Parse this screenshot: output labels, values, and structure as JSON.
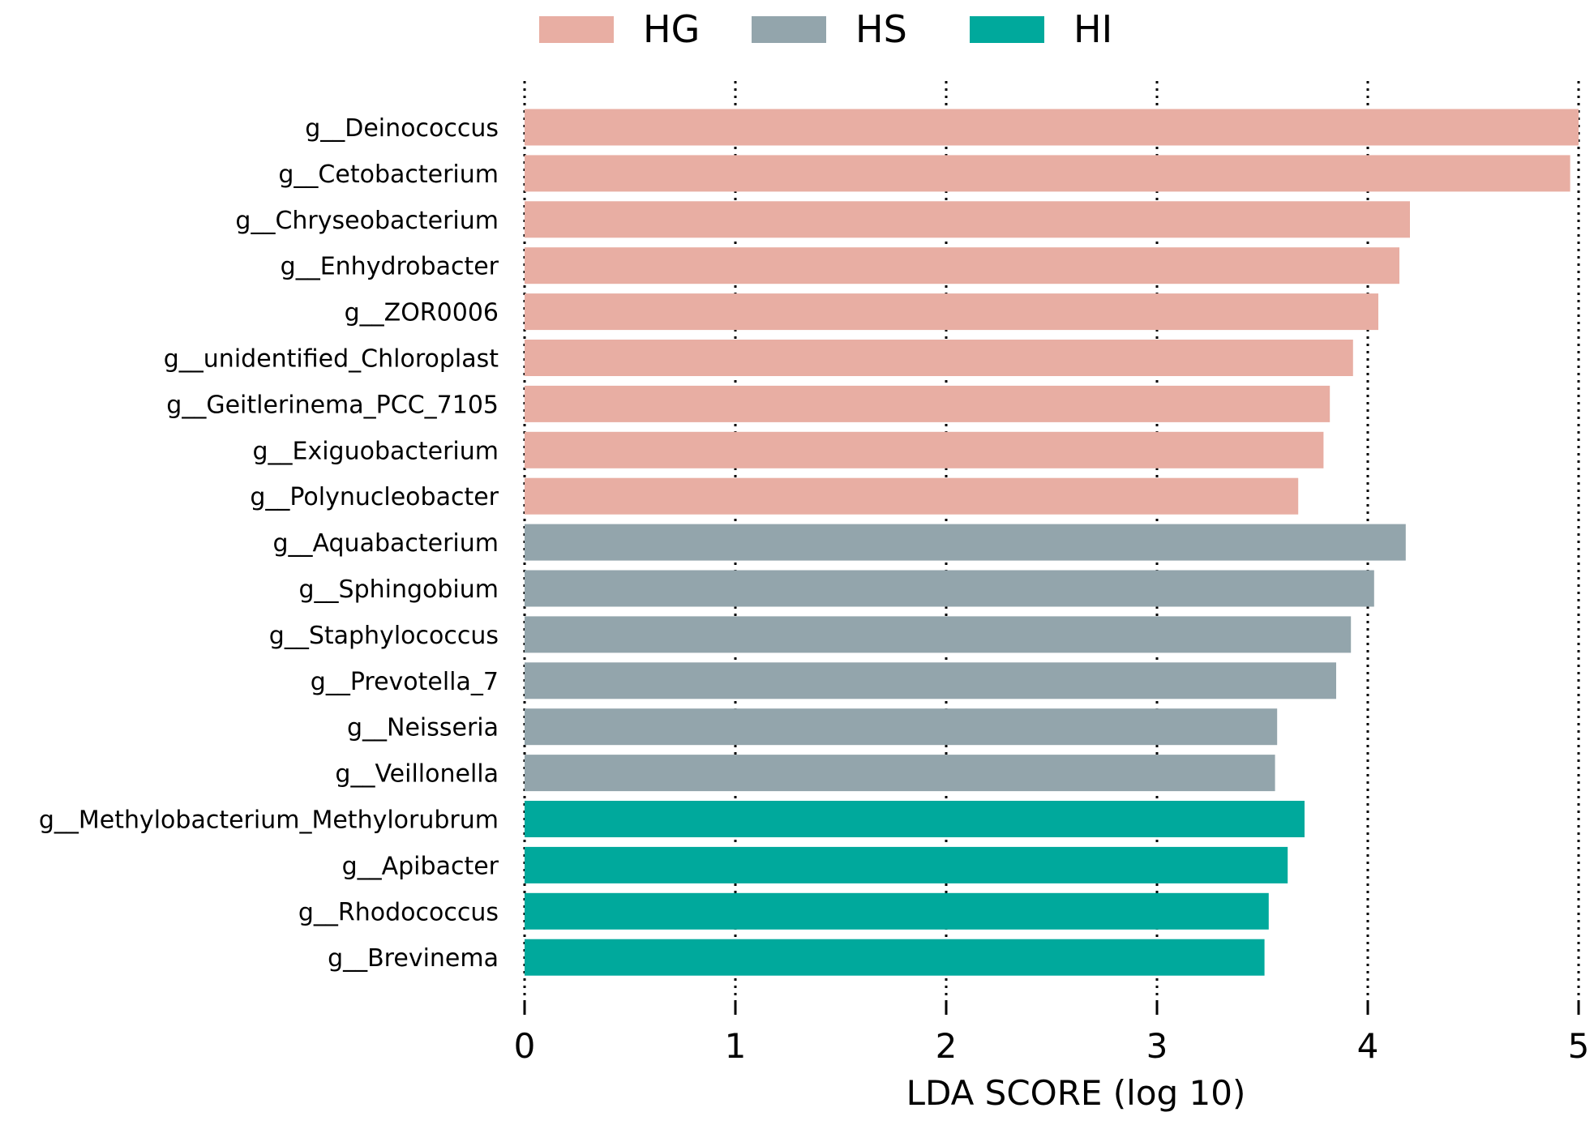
{
  "chart_data": {
    "type": "bar",
    "orientation": "horizontal",
    "title": "",
    "xlabel": "LDA SCORE (log 10)",
    "ylabel": "",
    "xlim": [
      0,
      5
    ],
    "xticks": [
      "0",
      "1",
      "2",
      "3",
      "4",
      "5"
    ],
    "grid": "vertical dotted lines at each x tick",
    "legend": {
      "placement": "top-center",
      "entries": [
        {
          "name": "HG",
          "color": "#e8aea3"
        },
        {
          "name": "HS",
          "color": "#93a5ac"
        },
        {
          "name": "HI",
          "color": "#00a99c"
        }
      ]
    },
    "categories": [
      "g__Deinococcus",
      "g__Cetobacterium",
      "g__Chryseobacterium",
      "g__Enhydrobacter",
      "g__ZOR0006",
      "g__unidentified_Chloroplast",
      "g__Geitlerinema_PCC_7105",
      "g__Exiguobacterium",
      "g__Polynucleobacter",
      "g__Aquabacterium",
      "g__Sphingobium",
      "g__Staphylococcus",
      "g__Prevotella_7",
      "g__Neisseria",
      "g__Veillonella",
      "g__Methylobacterium_Methylorubrum",
      "g__Apibacter",
      "g__Rhodococcus",
      "g__Brevinema"
    ],
    "values": [
      5.0,
      4.96,
      4.2,
      4.15,
      4.05,
      3.93,
      3.82,
      3.79,
      3.67,
      4.18,
      4.03,
      3.92,
      3.85,
      3.57,
      3.56,
      3.7,
      3.62,
      3.53,
      3.51
    ],
    "groups": [
      "HG",
      "HG",
      "HG",
      "HG",
      "HG",
      "HG",
      "HG",
      "HG",
      "HG",
      "HS",
      "HS",
      "HS",
      "HS",
      "HS",
      "HS",
      "HI",
      "HI",
      "HI",
      "HI"
    ]
  }
}
